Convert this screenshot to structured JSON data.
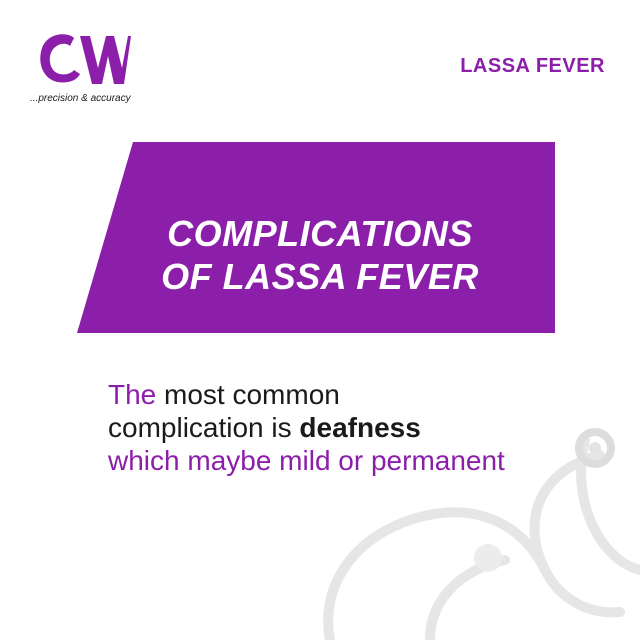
{
  "brand": {
    "logo_text": "CW",
    "tagline": "...precision & accuracy",
    "logo_color": "#8b1fa9"
  },
  "header": {
    "title": "LASSA FEVER"
  },
  "banner": {
    "line1": "COMPLICATIONS",
    "line2": "OF LASSA FEVER",
    "color": "#8b1fa9"
  },
  "body": {
    "line1_a": "The",
    "line1_b": " most common",
    "line2_a": "complication is ",
    "line2_b": "deafness",
    "line3": "which maybe mild or permanent"
  },
  "decor": {
    "background_icon": "stethoscope-icon"
  }
}
